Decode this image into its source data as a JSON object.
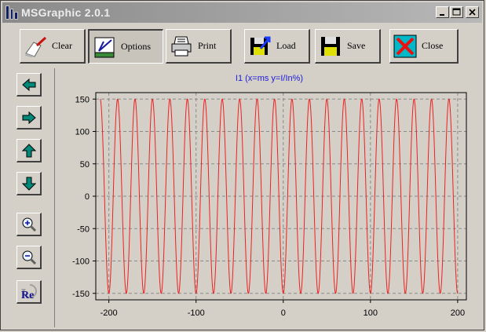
{
  "window": {
    "title": "MSGraphic 2.0.1"
  },
  "title_controls": [
    "minimize",
    "maximize",
    "close"
  ],
  "toolbar": {
    "clear_label": "Clear",
    "options_label": "Options",
    "print_label": "Print",
    "load_label": "Load",
    "save_label": "Save",
    "close_label": "Close"
  },
  "sidebar": [
    "arrow-left-icon",
    "arrow-right-icon",
    "arrow-up-icon",
    "arrow-down-icon",
    "zoom-in-icon",
    "zoom-out-icon",
    "reset-icon"
  ],
  "sidebar_reset_label": "Re",
  "colors": {
    "trace": "#ee2020",
    "title": "#1a1adc",
    "grid": "#8a8a8a"
  },
  "chart_data": {
    "type": "line",
    "title": "I1 (x=ms y=I/In%)",
    "xlim": [
      -215,
      210
    ],
    "ylim": [
      -160,
      160
    ],
    "x_ticks": [
      -200,
      -100,
      0,
      100,
      200
    ],
    "y_ticks": [
      150,
      100,
      50,
      0,
      -50,
      -100,
      -150
    ],
    "grid": true,
    "series": [
      {
        "waveform": "sine",
        "amplitude": 150,
        "frequency_hz": 50,
        "x_start": -210,
        "x_end": 200,
        "phase_deg": 270
      }
    ]
  }
}
